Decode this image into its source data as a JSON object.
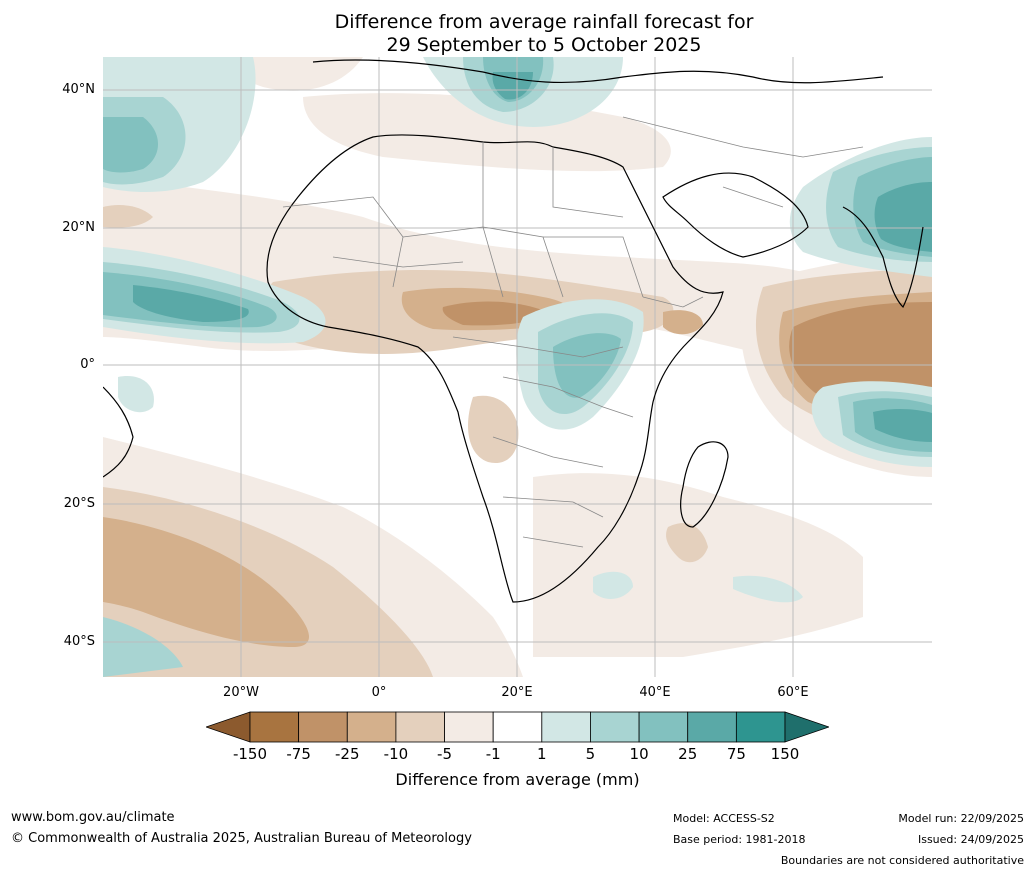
{
  "title_line1": "Difference from average rainfall forecast for",
  "title_line2": "29 September to 5 October 2025",
  "lat_labels": [
    "40°N",
    "20°N",
    "0°",
    "20°S",
    "40°S"
  ],
  "lon_labels": [
    "20°W",
    "0°",
    "20°E",
    "40°E",
    "60°E"
  ],
  "colorbar": {
    "ticks": [
      "-150",
      "-75",
      "-25",
      "-10",
      "-5",
      "-1",
      "1",
      "5",
      "10",
      "25",
      "75",
      "150"
    ],
    "colors": [
      "#8c5a2e",
      "#a87440",
      "#c09268",
      "#d4b08c",
      "#e4d0bd",
      "#f3ebe5",
      "#ffffff",
      "#d2e7e5",
      "#a8d4d2",
      "#82c1bf",
      "#5aa9a7",
      "#2e9590",
      "#1f6f6c"
    ],
    "label": "Difference from average (mm)"
  },
  "footer": {
    "url": "www.bom.gov.au/climate",
    "copyright": "© Commonwealth of Australia 2025, Australian Bureau of Meteorology",
    "model": "Model: ACCESS-S2",
    "base_period": "Base period: 1981-2018",
    "model_run": "Model run: 22/09/2025",
    "issued": "Issued: 24/09/2025",
    "disclaimer": "Boundaries are not considered authoritative"
  }
}
